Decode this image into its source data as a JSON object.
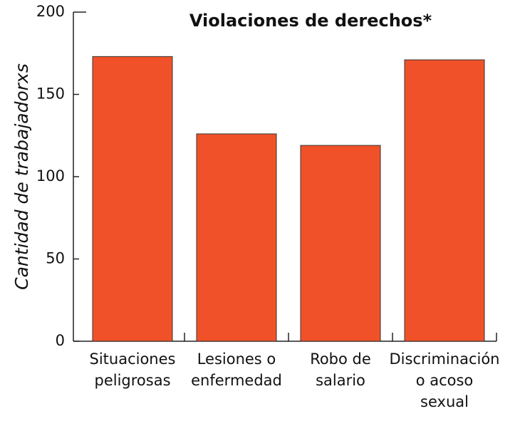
{
  "chart_data": {
    "type": "bar",
    "title": "Violaciones de derechos*",
    "y_label": "Cantidad de trabajadorxs",
    "categories": [
      "Situaciones\npeligrosas",
      "Lesiones o\nenfermedad",
      "Robo de\nsalario",
      "Discriminación\no acoso\nsexual"
    ],
    "values": [
      173,
      126,
      119,
      171
    ],
    "color": "#f05129",
    "ylim": [
      0,
      200
    ],
    "yticks": [
      0,
      50,
      100,
      150,
      200
    ],
    "grid": false
  }
}
